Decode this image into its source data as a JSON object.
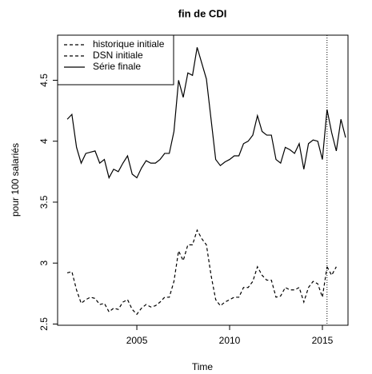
{
  "chart_data": {
    "type": "line",
    "title": "fin de CDI",
    "xlabel": "Time",
    "ylabel": "pour 100 salariés",
    "x": [
      2001.25,
      2001.5,
      2001.75,
      2002,
      2002.25,
      2002.5,
      2002.75,
      2003,
      2003.25,
      2003.5,
      2003.75,
      2004,
      2004.25,
      2004.5,
      2004.75,
      2005,
      2005.25,
      2005.5,
      2005.75,
      2006,
      2006.25,
      2006.5,
      2006.75,
      2007,
      2007.25,
      2007.5,
      2007.75,
      2008,
      2008.25,
      2008.5,
      2008.75,
      2009,
      2009.25,
      2009.5,
      2009.75,
      2010,
      2010.25,
      2010.5,
      2010.75,
      2011,
      2011.25,
      2011.5,
      2011.75,
      2012,
      2012.25,
      2012.5,
      2012.75,
      2013,
      2013.25,
      2013.5,
      2013.75,
      2014,
      2014.25,
      2014.5,
      2014.75,
      2015,
      2015.25,
      2015.5,
      2015.75,
      2016,
      2016.25
    ],
    "series": [
      {
        "name": "historique initiale",
        "color": "#000000",
        "linestyle": "dashed",
        "values": [
          2.92,
          2.93,
          2.78,
          2.67,
          2.7,
          2.72,
          2.71,
          2.66,
          2.67,
          2.6,
          2.63,
          2.62,
          2.68,
          2.7,
          2.62,
          2.58,
          2.63,
          2.66,
          2.64,
          2.65,
          2.68,
          2.72,
          2.72,
          2.85,
          3.1,
          3.02,
          3.15,
          3.15,
          3.27,
          3.2,
          3.15,
          2.9,
          2.7,
          2.65,
          2.68,
          2.7,
          2.72,
          2.72,
          2.8,
          2.8,
          2.85,
          2.97,
          2.9,
          2.86,
          2.86,
          2.72,
          2.73,
          2.8,
          2.78,
          2.78,
          2.8,
          2.68,
          2.8,
          2.85,
          2.83,
          2.72,
          2.97,
          null,
          null,
          null,
          null
        ]
      },
      {
        "name": "DSN initiale",
        "color": "#000000",
        "linestyle": "dashed",
        "values": [
          null,
          null,
          null,
          null,
          null,
          null,
          null,
          null,
          null,
          null,
          null,
          null,
          null,
          null,
          null,
          null,
          null,
          null,
          null,
          null,
          null,
          null,
          null,
          null,
          null,
          null,
          null,
          null,
          null,
          null,
          null,
          null,
          null,
          null,
          null,
          null,
          null,
          null,
          null,
          null,
          null,
          null,
          null,
          null,
          null,
          null,
          null,
          null,
          null,
          null,
          null,
          null,
          null,
          null,
          null,
          null,
          2.97,
          2.9,
          2.97,
          null,
          null
        ]
      },
      {
        "name": "Série finale",
        "color": "#000000",
        "linestyle": "solid",
        "values": [
          4.18,
          4.22,
          3.95,
          3.82,
          3.9,
          3.91,
          3.92,
          3.82,
          3.85,
          3.7,
          3.77,
          3.75,
          3.82,
          3.88,
          3.73,
          3.7,
          3.78,
          3.84,
          3.82,
          3.82,
          3.85,
          3.9,
          3.9,
          4.08,
          4.5,
          4.36,
          4.56,
          4.54,
          4.77,
          4.64,
          4.51,
          4.18,
          3.85,
          3.8,
          3.83,
          3.85,
          3.88,
          3.88,
          3.98,
          4.0,
          4.05,
          4.21,
          4.08,
          4.05,
          4.05,
          3.85,
          3.82,
          3.95,
          3.93,
          3.9,
          3.98,
          3.77,
          3.98,
          4.01,
          4.0,
          3.85,
          4.26,
          4.07,
          3.92,
          4.18,
          4.03
        ]
      }
    ],
    "xlim": [
      2000.73,
      2016.38
    ],
    "ylim": [
      2.49,
      4.87
    ],
    "xticks": [
      2005,
      2010,
      2015
    ],
    "yticks": [
      2.5,
      3.0,
      3.5,
      4.0,
      4.5
    ],
    "vline": 2015.25,
    "legend": "top-left",
    "grid": false
  }
}
